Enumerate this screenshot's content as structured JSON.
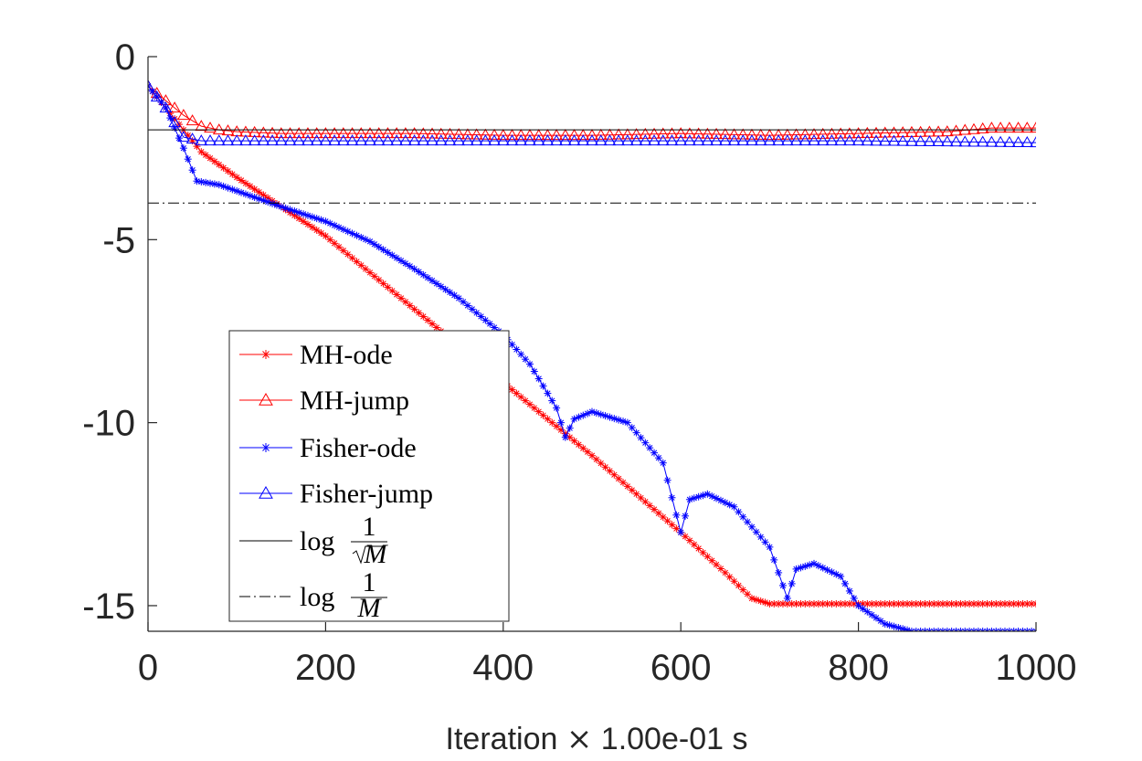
{
  "chart_data": {
    "type": "line",
    "xlabel_prefix": "Iteration",
    "xlabel_times": "×",
    "xlabel_suffix": "1.00e-01 s",
    "ylabel": "",
    "xlim": [
      0,
      1000
    ],
    "ylim": [
      -15.7,
      0
    ],
    "xticks": [
      0,
      200,
      400,
      600,
      800,
      1000
    ],
    "xtick_labels": [
      "0",
      "200",
      "400",
      "600",
      "800",
      "1000"
    ],
    "yticks": [
      0,
      -5,
      -10,
      -15
    ],
    "ytick_labels": [
      "0",
      "-5",
      "-10",
      "-15"
    ],
    "grid": false,
    "legend_position": "lower-left (inside)",
    "series": [
      {
        "name": "MH-ode",
        "color": "#ff0000",
        "marker": "asterisk",
        "x": [
          0,
          30,
          60,
          100,
          150,
          200,
          300,
          400,
          470,
          500,
          600,
          650,
          680,
          700,
          800,
          900,
          1000
        ],
        "y": [
          -0.8,
          -1.7,
          -2.6,
          -3.3,
          -4.1,
          -4.9,
          -6.9,
          -8.9,
          -10.3,
          -10.9,
          -13.0,
          -14.1,
          -14.8,
          -14.95,
          -14.95,
          -14.95,
          -14.95
        ]
      },
      {
        "name": "MH-jump",
        "color": "#ff0000",
        "marker": "triangle",
        "x": [
          0,
          20,
          40,
          60,
          80,
          100,
          150,
          200,
          300,
          400,
          500,
          600,
          700,
          800,
          900,
          950,
          1000
        ],
        "y": [
          -0.8,
          -1.2,
          -1.6,
          -1.9,
          -2.0,
          -2.05,
          -2.1,
          -2.1,
          -2.1,
          -2.15,
          -2.15,
          -2.1,
          -2.15,
          -2.1,
          -2.05,
          -1.95,
          -1.95
        ]
      },
      {
        "name": "Fisher-ode",
        "color": "#0000ff",
        "marker": "asterisk",
        "x": [
          0,
          20,
          40,
          55,
          80,
          150,
          200,
          250,
          300,
          350,
          400,
          430,
          460,
          470,
          480,
          500,
          540,
          580,
          600,
          610,
          630,
          660,
          700,
          720,
          730,
          750,
          780,
          800,
          830,
          860,
          1000
        ],
        "y": [
          -0.8,
          -1.4,
          -2.5,
          -3.4,
          -3.5,
          -4.1,
          -4.5,
          -5.05,
          -5.8,
          -6.6,
          -7.6,
          -8.4,
          -9.6,
          -10.4,
          -9.9,
          -9.7,
          -10.0,
          -11.1,
          -13.0,
          -12.1,
          -11.95,
          -12.3,
          -13.4,
          -14.8,
          -14.0,
          -13.85,
          -14.2,
          -15.0,
          -15.5,
          -15.7,
          -15.7
        ]
      },
      {
        "name": "Fisher-jump",
        "color": "#0000ff",
        "marker": "triangle",
        "x": [
          0,
          20,
          40,
          60,
          100,
          200,
          400,
          600,
          800,
          1000
        ],
        "y": [
          -0.8,
          -1.4,
          -2.2,
          -2.3,
          -2.3,
          -2.3,
          -2.3,
          -2.3,
          -2.3,
          -2.35
        ]
      },
      {
        "name": "log 1/√M",
        "color": "#000000",
        "style": "solid",
        "x": [
          0,
          1000
        ],
        "y": [
          -2.0,
          -2.0
        ]
      },
      {
        "name": "log 1/M",
        "color": "#000000",
        "style": "dashdot",
        "x": [
          0,
          1000
        ],
        "y": [
          -4.0,
          -4.0
        ]
      }
    ],
    "legend": [
      {
        "label": "MH-ode",
        "kind": "text"
      },
      {
        "label": "MH-jump",
        "kind": "text"
      },
      {
        "label": "Fisher-ode",
        "kind": "text"
      },
      {
        "label": "Fisher-jump",
        "kind": "text"
      },
      {
        "label": "log",
        "kind": "frac",
        "num": "1",
        "den": "M",
        "sqrt": true
      },
      {
        "label": "log",
        "kind": "frac",
        "num": "1",
        "den": "M",
        "sqrt": false
      }
    ]
  }
}
